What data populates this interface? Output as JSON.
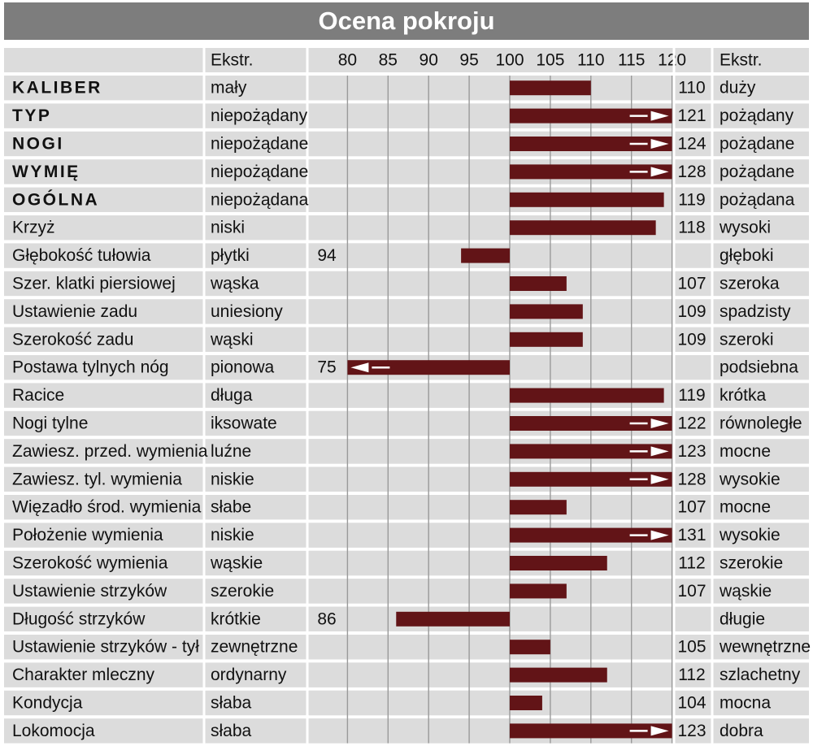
{
  "title": "Ocena pokroju",
  "chart_data": {
    "type": "bar",
    "title": "Ocena pokroju",
    "header_left": "Ekstr.",
    "header_right": "Ekstr.",
    "x_ticks": [
      80,
      85,
      90,
      95,
      100,
      105,
      110,
      115,
      120
    ],
    "xlim": [
      75,
      122
    ],
    "baseline": 100,
    "bar_color": "#621417",
    "rows": [
      {
        "trait": "KALIBER",
        "bold": true,
        "left": "mały",
        "right": "duży",
        "value": 110
      },
      {
        "trait": "TYP",
        "bold": true,
        "left": "niepożądany",
        "right": "pożądany",
        "value": 121
      },
      {
        "trait": "NOGI",
        "bold": true,
        "left": "niepożądane",
        "right": "pożądane",
        "value": 124
      },
      {
        "trait": "WYMIĘ",
        "bold": true,
        "left": "niepożądane",
        "right": "pożądane",
        "value": 128
      },
      {
        "trait": "OGÓLNA",
        "bold": true,
        "left": "niepożądana",
        "right": "pożądana",
        "value": 119
      },
      {
        "trait": "Krzyż",
        "bold": false,
        "left": "niski",
        "right": "wysoki",
        "value": 118
      },
      {
        "trait": "Głębokość tułowia",
        "bold": false,
        "left": "płytki",
        "right": "głęboki",
        "value": 94
      },
      {
        "trait": "Szer. klatki piersiowej",
        "bold": false,
        "left": "wąska",
        "right": "szeroka",
        "value": 107
      },
      {
        "trait": "Ustawienie zadu",
        "bold": false,
        "left": "uniesiony",
        "right": "spadzisty",
        "value": 109
      },
      {
        "trait": "Szerokość zadu",
        "bold": false,
        "left": "wąski",
        "right": "szeroki",
        "value": 109
      },
      {
        "trait": "Postawa tylnych nóg",
        "bold": false,
        "left": "pionowa",
        "right": "podsiebna",
        "value": 75
      },
      {
        "trait": "Racice",
        "bold": false,
        "left": "długa",
        "right": "krótka",
        "value": 119
      },
      {
        "trait": "Nogi tylne",
        "bold": false,
        "left": "iksowate",
        "right": "równoległe",
        "value": 122
      },
      {
        "trait": "Zawiesz. przed. wymienia",
        "bold": false,
        "left": "luźne",
        "right": "mocne",
        "value": 123
      },
      {
        "trait": "Zawiesz. tyl. wymienia",
        "bold": false,
        "left": "niskie",
        "right": "wysokie",
        "value": 128
      },
      {
        "trait": "Więzadło środ. wymienia",
        "bold": false,
        "left": "słabe",
        "right": "mocne",
        "value": 107
      },
      {
        "trait": "Położenie wymienia",
        "bold": false,
        "left": "niskie",
        "right": "wysokie",
        "value": 131
      },
      {
        "trait": "Szerokość wymienia",
        "bold": false,
        "left": "wąskie",
        "right": "szerokie",
        "value": 112
      },
      {
        "trait": "Ustawienie strzyków",
        "bold": false,
        "left": "szerokie",
        "right": "wąskie",
        "value": 107
      },
      {
        "trait": "Długość strzyków",
        "bold": false,
        "left": "krótkie",
        "right": "długie",
        "value": 86
      },
      {
        "trait": "Ustawienie strzyków - tył",
        "bold": false,
        "left": "zewnętrzne",
        "right": "wewnętrzne",
        "value": 105
      },
      {
        "trait": "Charakter mleczny",
        "bold": false,
        "left": "ordynarny",
        "right": "szlachetny",
        "value": 112
      },
      {
        "trait": "Kondycja",
        "bold": false,
        "left": "słaba",
        "right": "mocna",
        "value": 104
      },
      {
        "trait": "Lokomocja",
        "bold": false,
        "left": "słaba",
        "right": "dobra",
        "value": 123
      }
    ]
  }
}
